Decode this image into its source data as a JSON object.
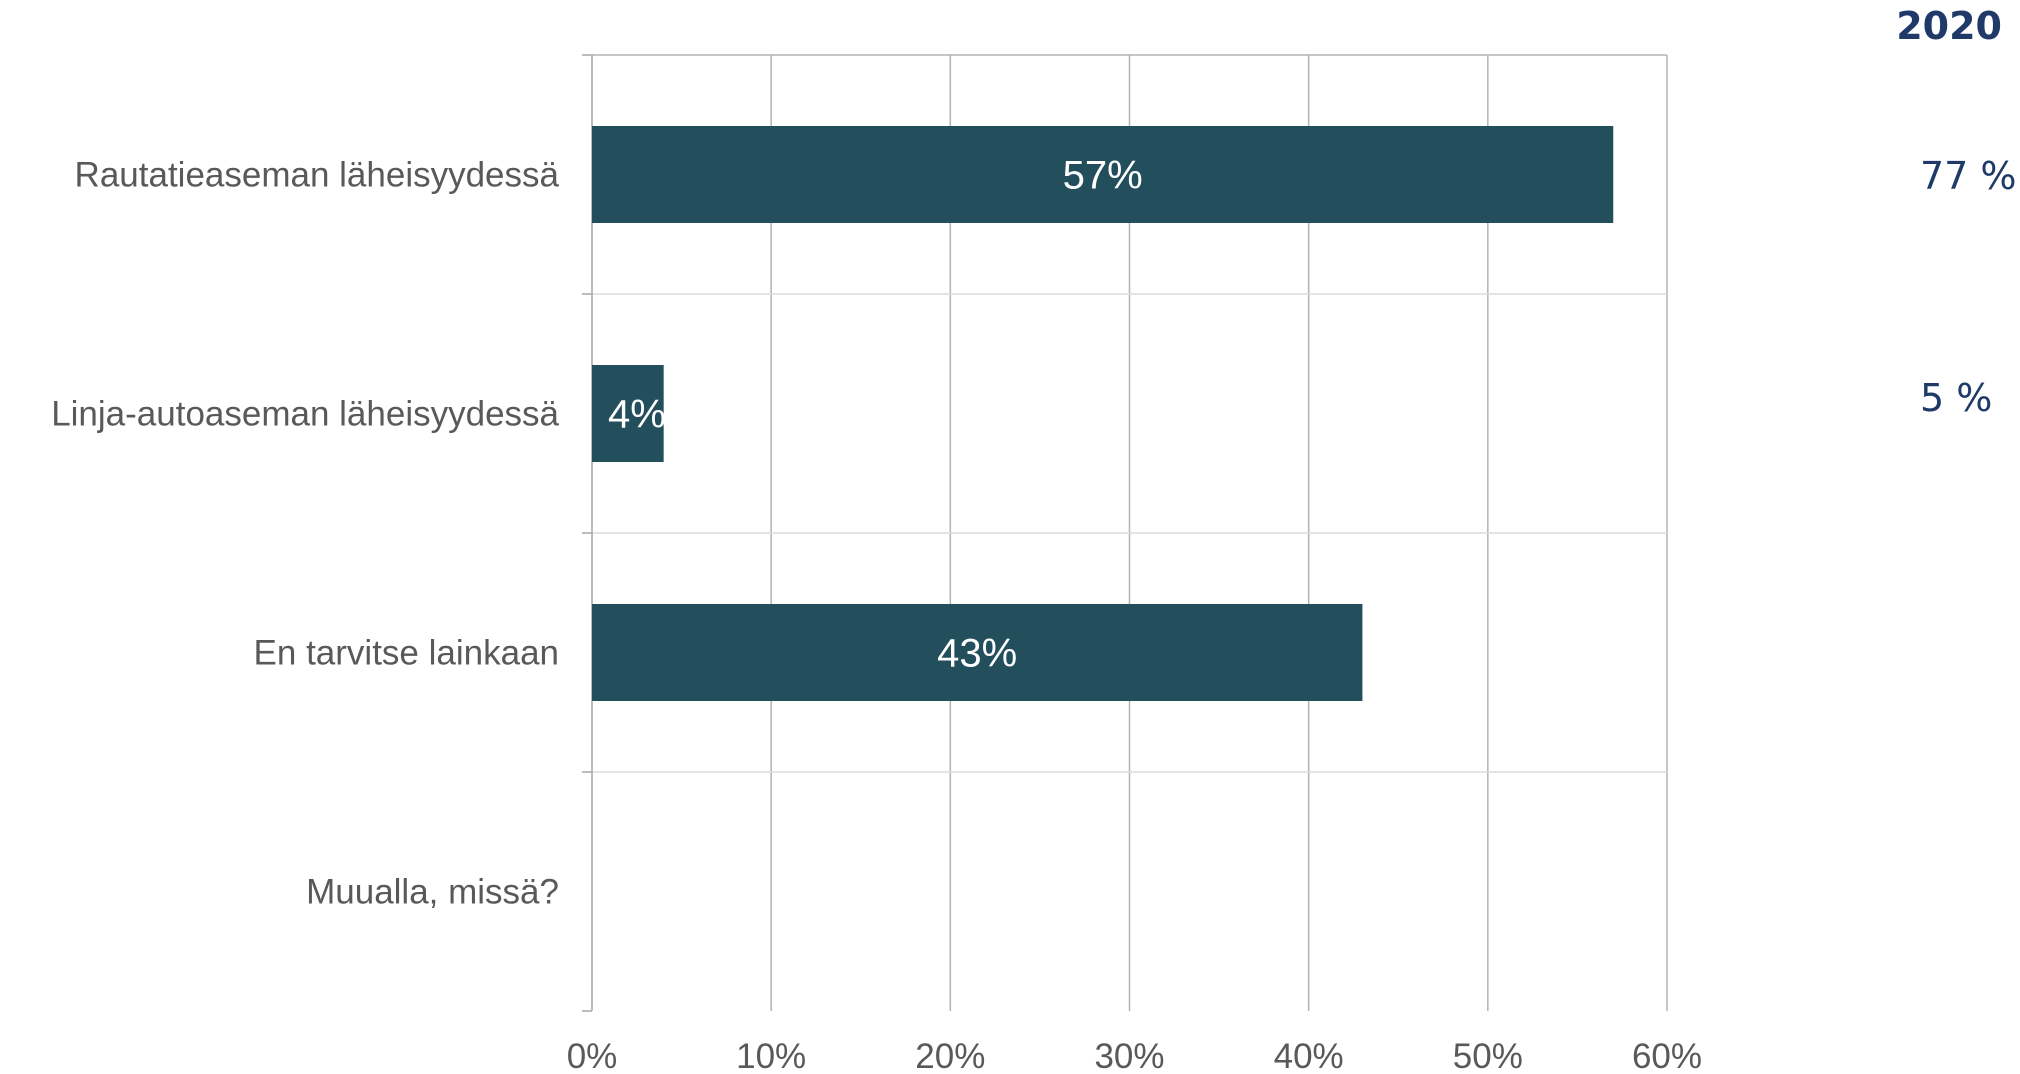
{
  "chart_data": {
    "type": "bar",
    "orientation": "horizontal",
    "categories": [
      "Rautatieaseman läheisyydessä",
      "Linja-autoaseman läheisyydessä",
      "En tarvitse lainkaan",
      "Muualla, missä?"
    ],
    "values": [
      57,
      4,
      43,
      null
    ],
    "value_labels": [
      "57%",
      "4%",
      "43%",
      ""
    ],
    "xlim": [
      0,
      60
    ],
    "x_ticks": [
      "0%",
      "10%",
      "20%",
      "30%",
      "40%",
      "50%",
      "60%"
    ],
    "title": "",
    "xlabel": "",
    "ylabel": "",
    "grid": true,
    "bar_color": "#234e5c"
  },
  "comparison": {
    "header": "2020",
    "values": [
      "77 %",
      "5 %"
    ]
  }
}
